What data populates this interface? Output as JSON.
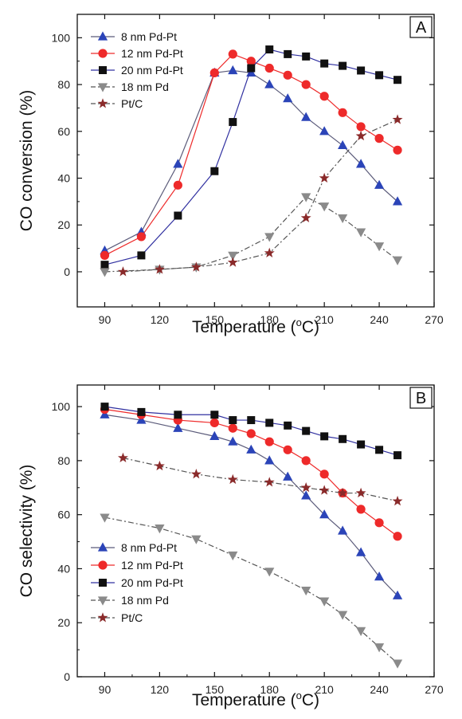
{
  "series_styles": [
    {
      "name": "8 nm Pd-Pt",
      "marker": "triangle-up",
      "color": "#2b44b8",
      "line": "#5b5b7a",
      "dash": false
    },
    {
      "name": "12 nm Pd-Pt",
      "marker": "circle",
      "color": "#ee2a2a",
      "line": "#ee2a2a",
      "dash": false
    },
    {
      "name": "20 nm Pd-Pt",
      "marker": "square",
      "color": "#111111",
      "line": "#3030a0",
      "dash": false
    },
    {
      "name": "18 nm Pd",
      "marker": "triangle-down",
      "color": "#8a8a8a",
      "line": "#555555",
      "dash": true
    },
    {
      "name": "Pt/C",
      "marker": "star",
      "color": "#8a2a2a",
      "line": "#555555",
      "dash": true
    }
  ],
  "chart_data": [
    {
      "type": "line",
      "panel": "A",
      "xlabel": "Temperature (",
      "xlabel_sup": "o",
      "xlabel_end": "C)",
      "ylabel": "CO conversion (%)",
      "xlim": [
        75,
        270
      ],
      "ylim": [
        -15,
        110
      ],
      "xticks": [
        90,
        120,
        150,
        180,
        210,
        240,
        270
      ],
      "yticks": [
        0,
        20,
        40,
        60,
        80,
        100
      ],
      "legend_position": "top-left",
      "series": [
        {
          "name": "8 nm Pd-Pt",
          "x": [
            90,
            110,
            130,
            150,
            160,
            170,
            180,
            190,
            200,
            210,
            220,
            230,
            240,
            250
          ],
          "y": [
            9,
            17,
            46,
            85,
            86,
            85,
            80,
            74,
            66,
            60,
            54,
            46,
            37,
            30
          ]
        },
        {
          "name": "12 nm Pd-Pt",
          "x": [
            90,
            110,
            130,
            150,
            160,
            170,
            180,
            190,
            200,
            210,
            220,
            230,
            240,
            250
          ],
          "y": [
            7,
            15,
            37,
            85,
            93,
            90,
            87,
            84,
            80,
            75,
            68,
            62,
            57,
            52
          ]
        },
        {
          "name": "20 nm Pd-Pt",
          "x": [
            90,
            110,
            130,
            150,
            160,
            170,
            180,
            190,
            200,
            210,
            220,
            230,
            240,
            250
          ],
          "y": [
            3,
            7,
            24,
            43,
            64,
            87,
            95,
            93,
            92,
            89,
            88,
            86,
            84,
            82
          ]
        },
        {
          "name": "18 nm Pd",
          "x": [
            90,
            120,
            140,
            160,
            180,
            200,
            210,
            220,
            230,
            240,
            250
          ],
          "y": [
            0,
            1,
            2,
            7,
            15,
            32,
            28,
            23,
            17,
            11,
            5
          ]
        },
        {
          "name": "Pt/C",
          "x": [
            100,
            120,
            140,
            160,
            180,
            200,
            210,
            230,
            250
          ],
          "y": [
            0,
            1,
            2,
            4,
            8,
            23,
            40,
            58,
            65
          ]
        }
      ]
    },
    {
      "type": "line",
      "panel": "B",
      "xlabel": "Temperature (",
      "xlabel_sup": "o",
      "xlabel_end": "C)",
      "ylabel": "CO selectivity (%)",
      "xlim": [
        75,
        270
      ],
      "ylim": [
        0,
        108
      ],
      "xticks": [
        90,
        120,
        150,
        180,
        210,
        240,
        270
      ],
      "yticks": [
        0,
        20,
        40,
        60,
        80,
        100
      ],
      "legend_position": "bottom-left",
      "series": [
        {
          "name": "8 nm Pd-Pt",
          "x": [
            90,
            110,
            130,
            150,
            160,
            170,
            180,
            190,
            200,
            210,
            220,
            230,
            240,
            250
          ],
          "y": [
            97,
            95,
            92,
            89,
            87,
            84,
            80,
            74,
            67,
            60,
            54,
            46,
            37,
            30
          ]
        },
        {
          "name": "12 nm Pd-Pt",
          "x": [
            90,
            110,
            130,
            150,
            160,
            170,
            180,
            190,
            200,
            210,
            220,
            230,
            240,
            250
          ],
          "y": [
            99,
            97,
            95,
            94,
            92,
            90,
            87,
            84,
            80,
            75,
            68,
            62,
            57,
            52
          ]
        },
        {
          "name": "20 nm Pd-Pt",
          "x": [
            90,
            110,
            130,
            150,
            160,
            170,
            180,
            190,
            200,
            210,
            220,
            230,
            240,
            250
          ],
          "y": [
            100,
            98,
            97,
            97,
            95,
            95,
            94,
            93,
            91,
            89,
            88,
            86,
            84,
            82
          ]
        },
        {
          "name": "18 nm Pd",
          "x": [
            90,
            120,
            140,
            160,
            180,
            200,
            210,
            220,
            230,
            240,
            250
          ],
          "y": [
            59,
            55,
            51,
            45,
            39,
            32,
            28,
            23,
            17,
            11,
            5
          ]
        },
        {
          "name": "Pt/C",
          "x": [
            100,
            120,
            140,
            160,
            180,
            200,
            210,
            220,
            230,
            250
          ],
          "y": [
            81,
            78,
            75,
            73,
            72,
            70,
            69,
            68,
            68,
            65
          ]
        }
      ]
    }
  ]
}
